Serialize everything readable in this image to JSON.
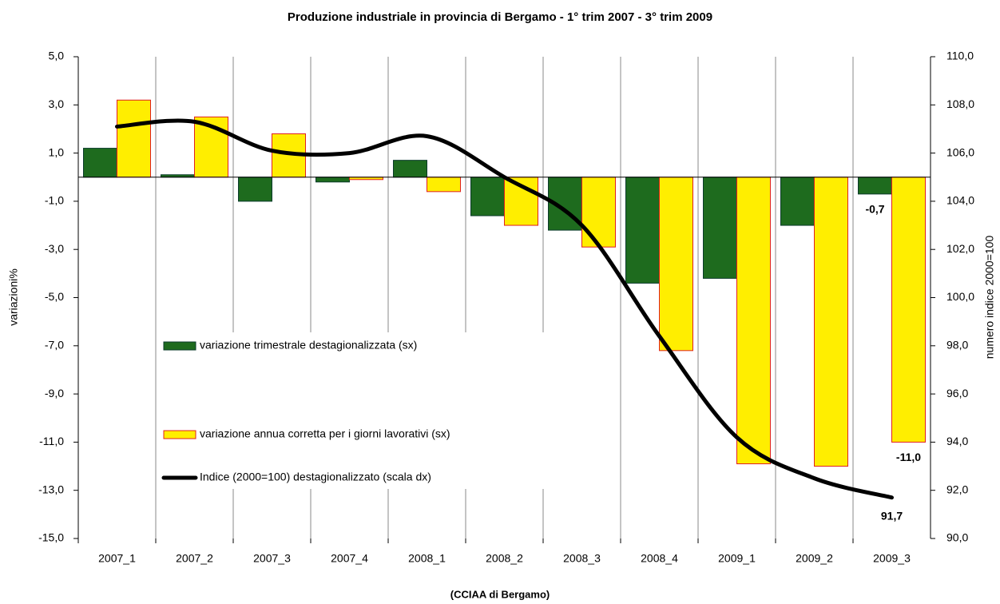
{
  "chart_data": {
    "type": "bar-line",
    "title": "Produzione industriale in provincia di Bergamo - 1° trim 2007 - 3° trim 2009",
    "source": "(CCIAA di Bergamo)",
    "ylabel": "variazioni%",
    "y2label": "numero indice 2000=100",
    "categories": [
      "2007_1",
      "2007_2",
      "2007_3",
      "2007_4",
      "2008_1",
      "2008_2",
      "2008_3",
      "2008_4",
      "2009_1",
      "2009_2",
      "2009_3"
    ],
    "ylim": [
      -15,
      5
    ],
    "yticks": [
      {
        "value": 5,
        "label": "5,0"
      },
      {
        "value": 3,
        "label": "3,0"
      },
      {
        "value": 1,
        "label": "1,0"
      },
      {
        "value": -1,
        "label": "-1,0"
      },
      {
        "value": -3,
        "label": "-3,0"
      },
      {
        "value": -5,
        "label": "-5,0"
      },
      {
        "value": -7,
        "label": "-7,0"
      },
      {
        "value": -9,
        "label": "-9,0"
      },
      {
        "value": -11,
        "label": "-11,0"
      },
      {
        "value": -13,
        "label": "-13,0"
      },
      {
        "value": -15,
        "label": "-15,0"
      }
    ],
    "y2lim": [
      90,
      110
    ],
    "y2ticks": [
      {
        "value": 110,
        "label": "110,0"
      },
      {
        "value": 108,
        "label": "108,0"
      },
      {
        "value": 106,
        "label": "106,0"
      },
      {
        "value": 104,
        "label": "104,0"
      },
      {
        "value": 102,
        "label": "102,0"
      },
      {
        "value": 100,
        "label": "100,0"
      },
      {
        "value": 98,
        "label": "98,0"
      },
      {
        "value": 96,
        "label": "96,0"
      },
      {
        "value": 94,
        "label": "94,0"
      },
      {
        "value": 92,
        "label": "92,0"
      },
      {
        "value": 90,
        "label": "90,0"
      }
    ],
    "series": [
      {
        "name": "variazione trimestrale destagionalizzata (sx)",
        "kind": "bar",
        "color": "#1e6b1e",
        "edge": "#0b3b2b",
        "values": [
          1.2,
          0.1,
          -1.0,
          -0.2,
          0.7,
          -1.6,
          -2.2,
          -4.4,
          -4.2,
          -2.0,
          -0.7
        ],
        "value_labels": [
          null,
          null,
          null,
          null,
          null,
          null,
          null,
          null,
          null,
          null,
          "-0,7"
        ]
      },
      {
        "name": "variazione annua corretta per i giorni lavorativi (sx)",
        "kind": "bar",
        "color": "#ffee00",
        "edge": "#e02020",
        "values": [
          3.2,
          2.5,
          1.8,
          -0.1,
          -0.6,
          -2.0,
          -2.9,
          -7.2,
          -11.9,
          -12.0,
          -11.0
        ],
        "value_labels": [
          null,
          null,
          null,
          null,
          null,
          null,
          null,
          null,
          null,
          null,
          "-11,0"
        ]
      },
      {
        "name": "Indice (2000=100) destagionalizzato (scala dx)",
        "kind": "line",
        "axis": "y2",
        "color": "#000000",
        "values": [
          107.1,
          107.3,
          106.1,
          106.0,
          106.7,
          105.0,
          103.0,
          98.4,
          94.2,
          92.5,
          91.7
        ],
        "value_labels": [
          null,
          null,
          null,
          null,
          null,
          null,
          null,
          null,
          null,
          null,
          "91,7"
        ]
      }
    ]
  }
}
